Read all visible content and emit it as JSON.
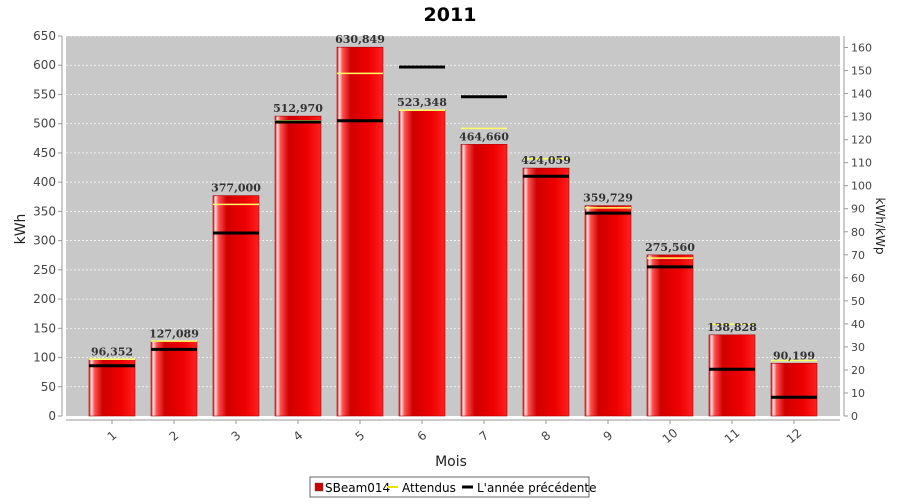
{
  "chart_data": {
    "type": "bar",
    "title": "2011",
    "xlabel": "Mois",
    "ylabel": "kWh",
    "y2label": "kWh/kWp",
    "ylim": [
      0,
      650
    ],
    "y2lim": [
      0,
      165
    ],
    "yticks": [
      0,
      50,
      100,
      150,
      200,
      250,
      300,
      350,
      400,
      450,
      500,
      550,
      600,
      650
    ],
    "y2ticks": [
      0,
      10,
      20,
      30,
      40,
      50,
      60,
      70,
      80,
      90,
      100,
      110,
      120,
      130,
      140,
      150,
      160
    ],
    "categories": [
      "1",
      "2",
      "3",
      "4",
      "5",
      "6",
      "7",
      "8",
      "9",
      "10",
      "11",
      "12"
    ],
    "grid": true,
    "legend_position": "bottom",
    "series": [
      {
        "name": "SBeam014",
        "kind": "bar",
        "color": "#e00000",
        "values": [
          96.352,
          127.089,
          377.0,
          512.97,
          630.849,
          523.348,
          464.66,
          424.059,
          359.729,
          275.56,
          138.828,
          90.199
        ],
        "labels": [
          "96,352",
          "127,089",
          "377,000",
          "512,970",
          "630,849",
          "523,348",
          "464,660",
          "424,059",
          "359,729",
          "275,560",
          "138,828",
          "90,199"
        ]
      },
      {
        "name": "Attendus",
        "kind": "marker",
        "color": "#ffff66",
        "values": [
          97,
          128,
          362,
          505,
          586,
          523,
          492,
          440,
          356,
          270,
          157,
          95
        ]
      },
      {
        "name": "L'année précédente",
        "kind": "marker",
        "color": "#000000",
        "values": [
          86,
          114,
          313,
          503,
          505,
          597,
          546,
          410,
          347,
          255,
          80,
          32
        ]
      }
    ]
  }
}
